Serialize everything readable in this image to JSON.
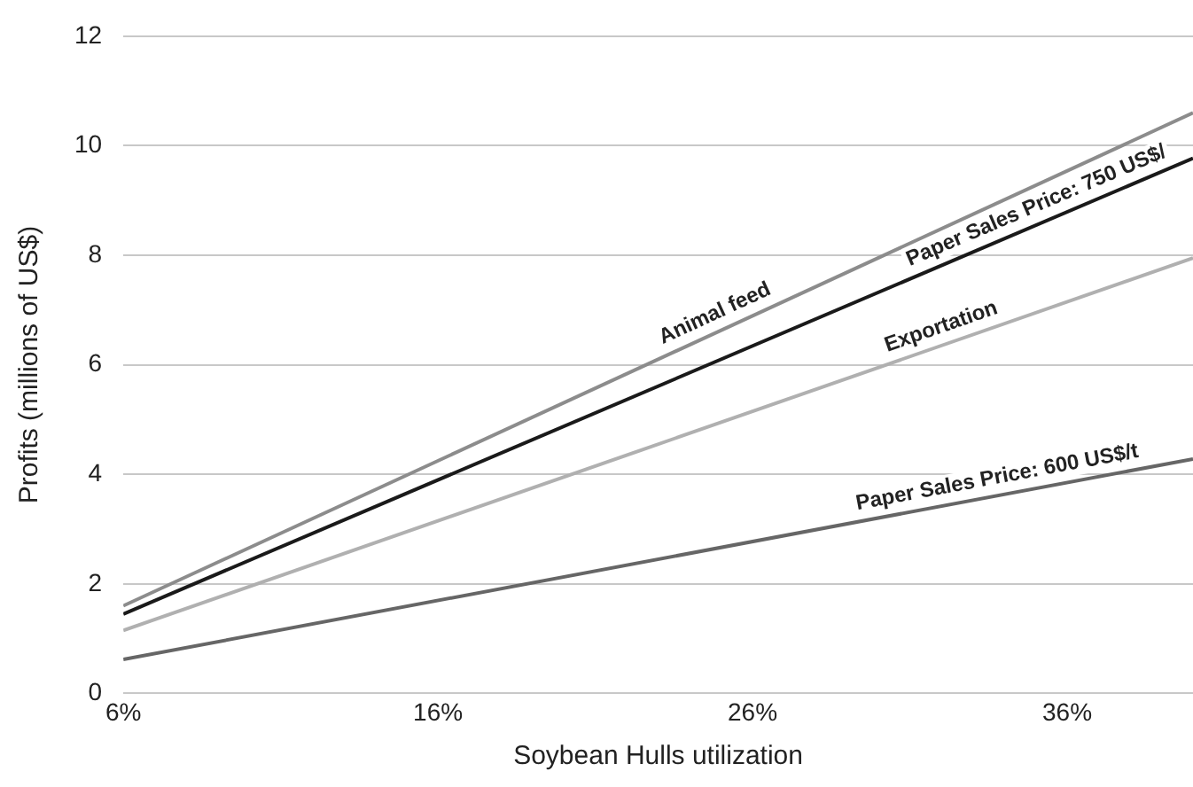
{
  "chart_data": {
    "type": "line",
    "xlabel": "Soybean Hulls utilization",
    "ylabel": "Profits (millions of US$)",
    "xlim": [
      6,
      40
    ],
    "xticks": [
      {
        "value": 6,
        "label": "6%"
      },
      {
        "value": 16,
        "label": "16%"
      },
      {
        "value": 26,
        "label": "26%"
      },
      {
        "value": 36,
        "label": "36%"
      }
    ],
    "ylim": [
      0,
      12
    ],
    "yticks": [
      0,
      2,
      4,
      6,
      8,
      10,
      12
    ],
    "grid": "y",
    "legend": false,
    "marker": "none",
    "line_style": "solid",
    "x": [
      6,
      40
    ],
    "series": [
      {
        "name": "Animal feed",
        "color": "#8c8c8c",
        "values": [
          1.6,
          10.6
        ]
      },
      {
        "name": "Paper Sales Price: 750 US$/",
        "color": "#1a1a1a",
        "values": [
          1.45,
          9.77
        ]
      },
      {
        "name": "Exportation",
        "color": "#b0b0b0",
        "values": [
          1.15,
          7.95
        ]
      },
      {
        "name": "Paper Sales Price: 600 US$/t",
        "color": "#666666",
        "values": [
          0.62,
          4.28
        ]
      }
    ]
  }
}
